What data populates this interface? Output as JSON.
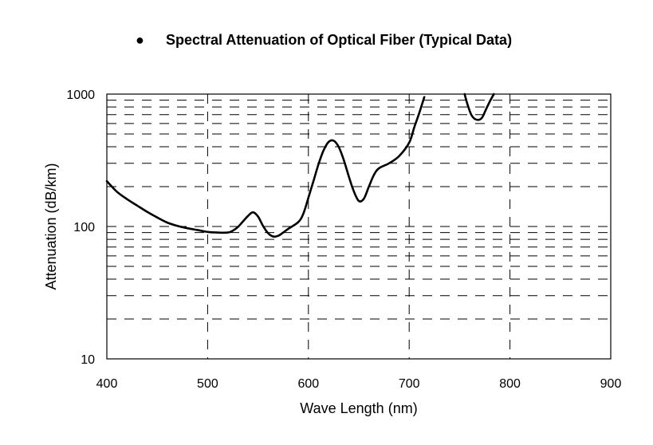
{
  "chart_data": {
    "type": "line",
    "title": "Spectral Attenuation of Optical Fiber (Typical Data)",
    "title_bullet": "●",
    "xlabel": "Wave Length (nm)",
    "ylabel": "Attenuation (dB/km)",
    "xlim": [
      400,
      900
    ],
    "ylim": [
      10,
      1000
    ],
    "yscale": "log",
    "grid": true,
    "x_ticks": [
      400,
      500,
      600,
      700,
      800,
      900
    ],
    "x_tick_labels": [
      "400",
      "500",
      "600",
      "700",
      "800",
      "900"
    ],
    "y_ticks": [
      10,
      100,
      1000
    ],
    "y_tick_labels": [
      "10",
      "100",
      "1000"
    ],
    "line_color": "#000000",
    "series": [
      {
        "segments": [
          {
            "x": [
              400,
              410,
              420,
              430,
              440,
              450,
              460,
              470,
              480,
              490,
              500,
              510,
              520,
              525,
              530,
              535,
              540,
              545,
              550,
              555,
              560,
              565,
              570,
              575,
              580,
              590,
              595,
              600,
              605,
              610,
              615,
              620,
              625,
              630,
              635,
              640,
              645,
              650,
              655,
              660,
              665,
              670,
              680,
              690,
              700,
              705,
              710,
              715
            ],
            "y": [
              220,
              183,
              161,
              144,
              129,
              117,
              107,
              101,
              97,
              94,
              91,
              90,
              90,
              93,
              99,
              109,
              120,
              128,
              119,
              101,
              89,
              84,
              85,
              90,
              96,
              108,
              125,
              165,
              220,
              295,
              375,
              435,
              445,
              400,
              320,
              240,
              185,
              156,
              162,
              200,
              245,
              275,
              300,
              340,
              430,
              560,
              720,
              950
            ]
          },
          {
            "x": [
              755,
              758,
              762,
              767,
              772,
              776,
              780,
              784
            ],
            "y": [
              1000,
              830,
              690,
              640,
              660,
              760,
              880,
              1000
            ]
          }
        ]
      }
    ]
  }
}
